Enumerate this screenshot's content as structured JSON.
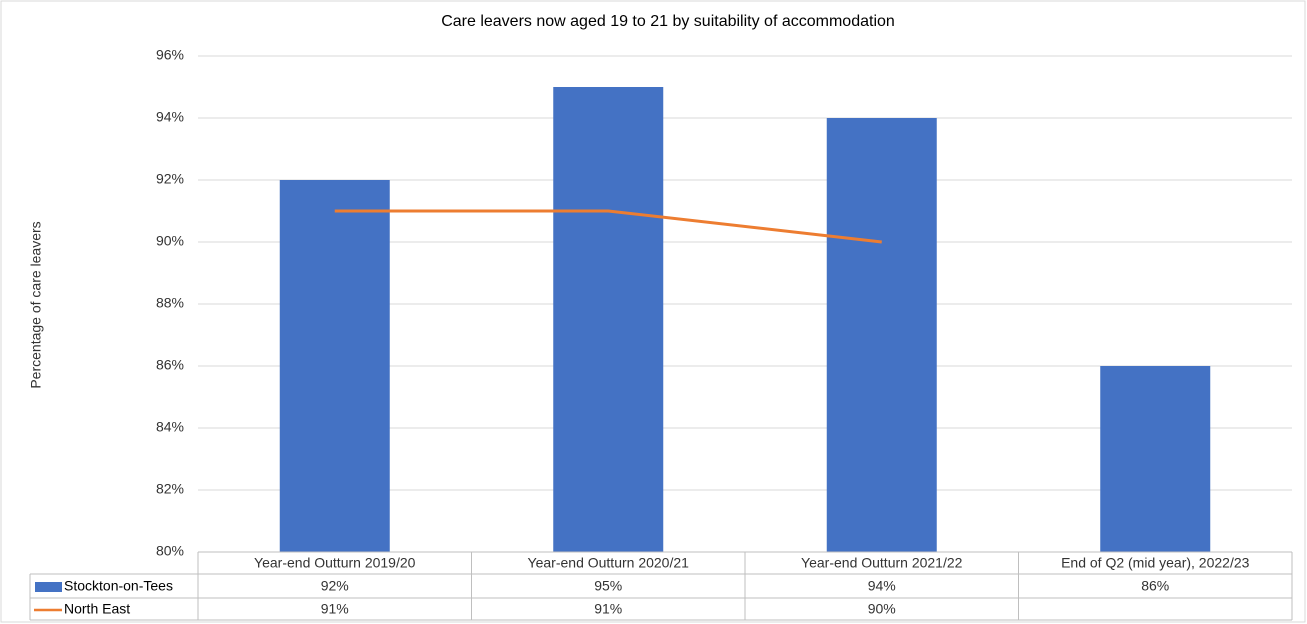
{
  "chart_data": {
    "type": "bar",
    "title": "Care leavers now aged 19 to 21 by suitability  of accommodation",
    "y_label": "Percentage of care leavers",
    "categories": [
      "Year-end Outturn 2019/20",
      "Year-end Outturn 2020/21",
      "Year-end Outturn 2021/22",
      "End of Q2 (mid year), 2022/23"
    ],
    "series": [
      {
        "name": "Stockton-on-Tees",
        "type": "bar",
        "color": "#4472c4",
        "values": [
          92,
          95,
          94,
          86
        ],
        "value_labels": [
          "92%",
          "95%",
          "94%",
          "86%"
        ]
      },
      {
        "name": "North East",
        "type": "line",
        "color": "#ed7d31",
        "values": [
          91,
          91,
          90,
          null
        ],
        "value_labels": [
          "91%",
          "91%",
          "90%",
          null
        ]
      }
    ],
    "ylim": [
      80,
      96
    ],
    "yticks": [
      {
        "value": 80,
        "label": "80%"
      },
      {
        "value": 82,
        "label": "82%"
      },
      {
        "value": 84,
        "label": "84%"
      },
      {
        "value": 86,
        "label": "86%"
      },
      {
        "value": 88,
        "label": "88%"
      },
      {
        "value": 90,
        "label": "90%"
      },
      {
        "value": 92,
        "label": "92%"
      },
      {
        "value": 94,
        "label": "94%"
      },
      {
        "value": 96,
        "label": "96%"
      }
    ],
    "grid": true,
    "data_table": true
  }
}
